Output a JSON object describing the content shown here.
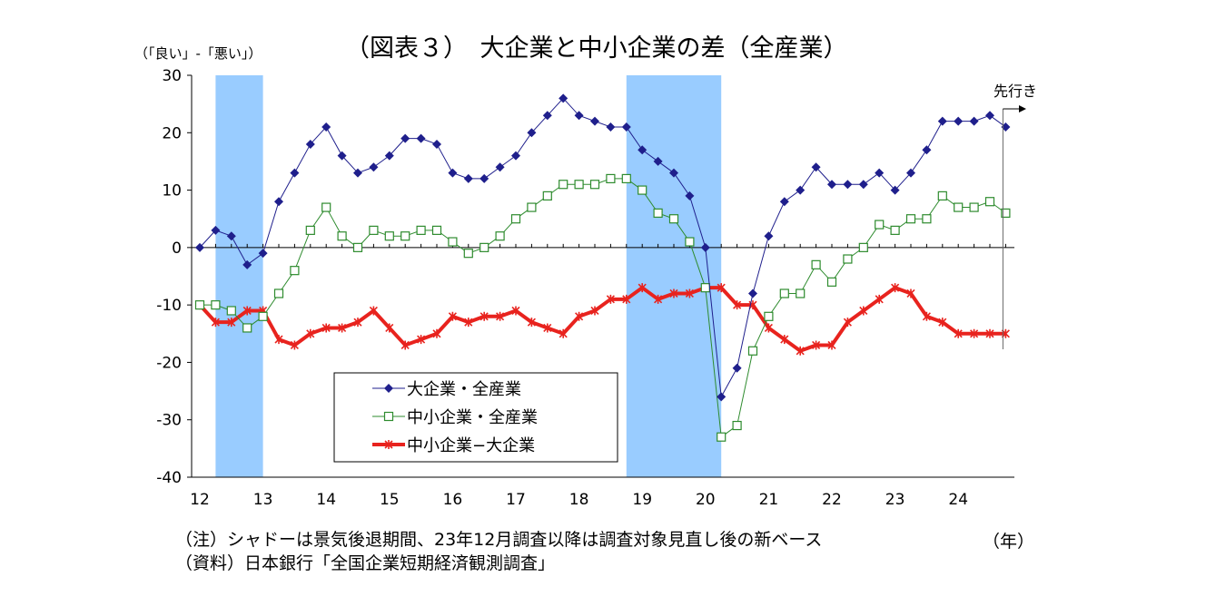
{
  "chart_data": {
    "type": "line",
    "title": "（図表３）　大企業と中小企業の差（全産業）",
    "ylabel": "（「良い」-「悪い」）",
    "xlabel": "（年）",
    "ylim": [
      -40,
      30
    ],
    "yticks": [
      "30",
      "20",
      "10",
      "0",
      "-10",
      "-20",
      "-30",
      "-40"
    ],
    "ytick_values": [
      30,
      20,
      10,
      0,
      -10,
      -20,
      -30,
      -40
    ],
    "xtick_labels": [
      "12",
      "13",
      "14",
      "15",
      "16",
      "17",
      "18",
      "19",
      "20",
      "21",
      "22",
      "23",
      "24"
    ],
    "x_start_year": 2012,
    "grid": false,
    "legend_position": "lower-left",
    "forward_label": "先行き",
    "shaded_periods": [
      [
        2012.25,
        2013.0
      ],
      [
        2018.75,
        2020.25
      ]
    ],
    "series": [
      {
        "name": "大企業・全産業",
        "color": "#1f1f8c",
        "marker": "diamond",
        "values": [
          0,
          3,
          2,
          -3,
          -1,
          8,
          13,
          18,
          21,
          16,
          13,
          14,
          16,
          19,
          19,
          18,
          13,
          12,
          12,
          14,
          16,
          20,
          23,
          26,
          23,
          22,
          21,
          21,
          17,
          15,
          13,
          9,
          0,
          -26,
          -21,
          -8,
          2,
          8,
          10,
          14,
          11,
          11,
          11,
          13,
          10,
          13,
          17,
          22,
          22,
          22,
          23,
          21
        ]
      },
      {
        "name": "中小企業・全産業",
        "color": "#2e8b2e",
        "marker": "square",
        "values": [
          -10,
          -10,
          -11,
          -14,
          -12,
          -8,
          -4,
          3,
          7,
          2,
          0,
          3,
          2,
          2,
          3,
          3,
          1,
          -1,
          0,
          2,
          5,
          7,
          9,
          11,
          11,
          11,
          12,
          12,
          10,
          6,
          5,
          1,
          -7,
          -33,
          -31,
          -18,
          -12,
          -8,
          -8,
          -3,
          -6,
          -2,
          0,
          4,
          3,
          5,
          5,
          9,
          7,
          7,
          8,
          6
        ]
      },
      {
        "name": "中小企業−大企業",
        "color": "#e8231e",
        "marker": "star",
        "values": [
          -10,
          -13,
          -13,
          -11,
          -11,
          -16,
          -17,
          -15,
          -14,
          -14,
          -13,
          -11,
          -14,
          -17,
          -16,
          -15,
          -12,
          -13,
          -12,
          -12,
          -11,
          -13,
          -14,
          -15,
          -12,
          -11,
          -9,
          -9,
          -7,
          -9,
          -8,
          -8,
          -7,
          -7,
          -10,
          -10,
          -14,
          -16,
          -18,
          -17,
          -17,
          -13,
          -11,
          -9,
          -7,
          -8,
          -12,
          -13,
          -15,
          -15,
          -15,
          -15
        ]
      }
    ],
    "notes": [
      "（注）シャドーは景気後退期間、23年12月調査以降は調査対象見直し後の新ベース",
      "（資料）日本銀行「全国企業短期経済観測調査」"
    ]
  }
}
